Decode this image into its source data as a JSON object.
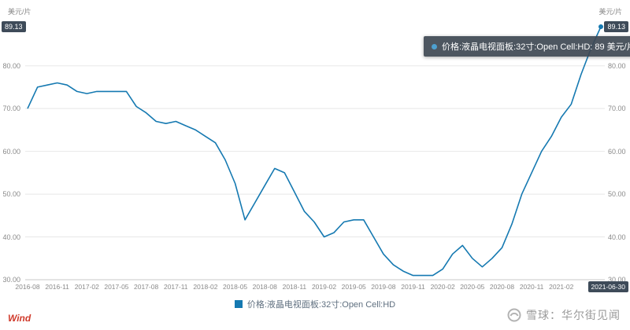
{
  "header": {
    "unit_left": "美元/片",
    "unit_right": "美元/片"
  },
  "tooltip": {
    "text": "价格:液晶电视面板:32寸:Open Cell:HD: 89 美元/片"
  },
  "legend": {
    "label": "价格:液晶电视面板:32寸:Open Cell:HD"
  },
  "footer": {
    "wind": "Wind",
    "source": "雪球：华尔街见闻"
  },
  "chart_data": {
    "type": "line",
    "title": "",
    "ylabel": "美元/片",
    "xlabel": "",
    "ylim": [
      30,
      89.13
    ],
    "grid": "horizontal",
    "legend_position": "bottom",
    "y_ticks": [
      "80.00",
      "70.00",
      "60.00",
      "50.00",
      "40.00",
      "30.00"
    ],
    "max_badge": "89.13",
    "x_badge": "2021-06-30",
    "x": [
      "2016-08",
      "2016-09",
      "2016-10",
      "2016-11",
      "2016-12",
      "2017-01",
      "2017-02",
      "2017-03",
      "2017-04",
      "2017-05",
      "2017-06",
      "2017-07",
      "2017-08",
      "2017-09",
      "2017-10",
      "2017-11",
      "2017-12",
      "2018-01",
      "2018-02",
      "2018-03",
      "2018-04",
      "2018-05",
      "2018-06",
      "2018-07",
      "2018-08",
      "2018-09",
      "2018-10",
      "2018-11",
      "2018-12",
      "2019-01",
      "2019-02",
      "2019-03",
      "2019-04",
      "2019-05",
      "2019-06",
      "2019-07",
      "2019-08",
      "2019-09",
      "2019-10",
      "2019-11",
      "2019-12",
      "2020-01",
      "2020-02",
      "2020-03",
      "2020-04",
      "2020-05",
      "2020-06",
      "2020-07",
      "2020-08",
      "2020-09",
      "2020-10",
      "2020-11",
      "2020-12",
      "2021-01",
      "2021-02",
      "2021-03",
      "2021-04",
      "2021-05",
      "2021-06"
    ],
    "x_ticks": [
      {
        "i": 0,
        "label": "2016-08"
      },
      {
        "i": 3,
        "label": "2016-11"
      },
      {
        "i": 6,
        "label": "2017-02"
      },
      {
        "i": 9,
        "label": "2017-05"
      },
      {
        "i": 12,
        "label": "2017-08"
      },
      {
        "i": 15,
        "label": "2017-11"
      },
      {
        "i": 18,
        "label": "2018-02"
      },
      {
        "i": 21,
        "label": "2018-05"
      },
      {
        "i": 24,
        "label": "2018-08"
      },
      {
        "i": 27,
        "label": "2018-11"
      },
      {
        "i": 30,
        "label": "2019-02"
      },
      {
        "i": 33,
        "label": "2019-05"
      },
      {
        "i": 36,
        "label": "2019-08"
      },
      {
        "i": 39,
        "label": "2019-11"
      },
      {
        "i": 42,
        "label": "2020-02"
      },
      {
        "i": 45,
        "label": "2020-05"
      },
      {
        "i": 48,
        "label": "2020-08"
      },
      {
        "i": 51,
        "label": "2020-11"
      },
      {
        "i": 54,
        "label": "2021-02"
      }
    ],
    "series": [
      {
        "name": "价格:液晶电视面板:32寸:Open Cell:HD",
        "color": "#1579b1",
        "values": [
          70,
          75,
          75.5,
          76,
          75.5,
          74,
          73.5,
          74,
          74,
          74,
          74,
          70.5,
          69,
          67,
          66.5,
          67,
          66,
          65,
          63.5,
          62,
          58,
          52.5,
          44,
          48,
          52,
          56,
          55,
          50.5,
          46,
          43.5,
          40,
          41,
          43.5,
          44,
          44,
          40,
          36,
          33.5,
          32,
          31,
          31,
          31,
          32.5,
          36,
          38,
          35,
          33,
          35,
          37.5,
          43,
          50,
          55,
          60,
          63.5,
          68,
          71,
          78,
          84,
          89.13
        ]
      }
    ]
  }
}
